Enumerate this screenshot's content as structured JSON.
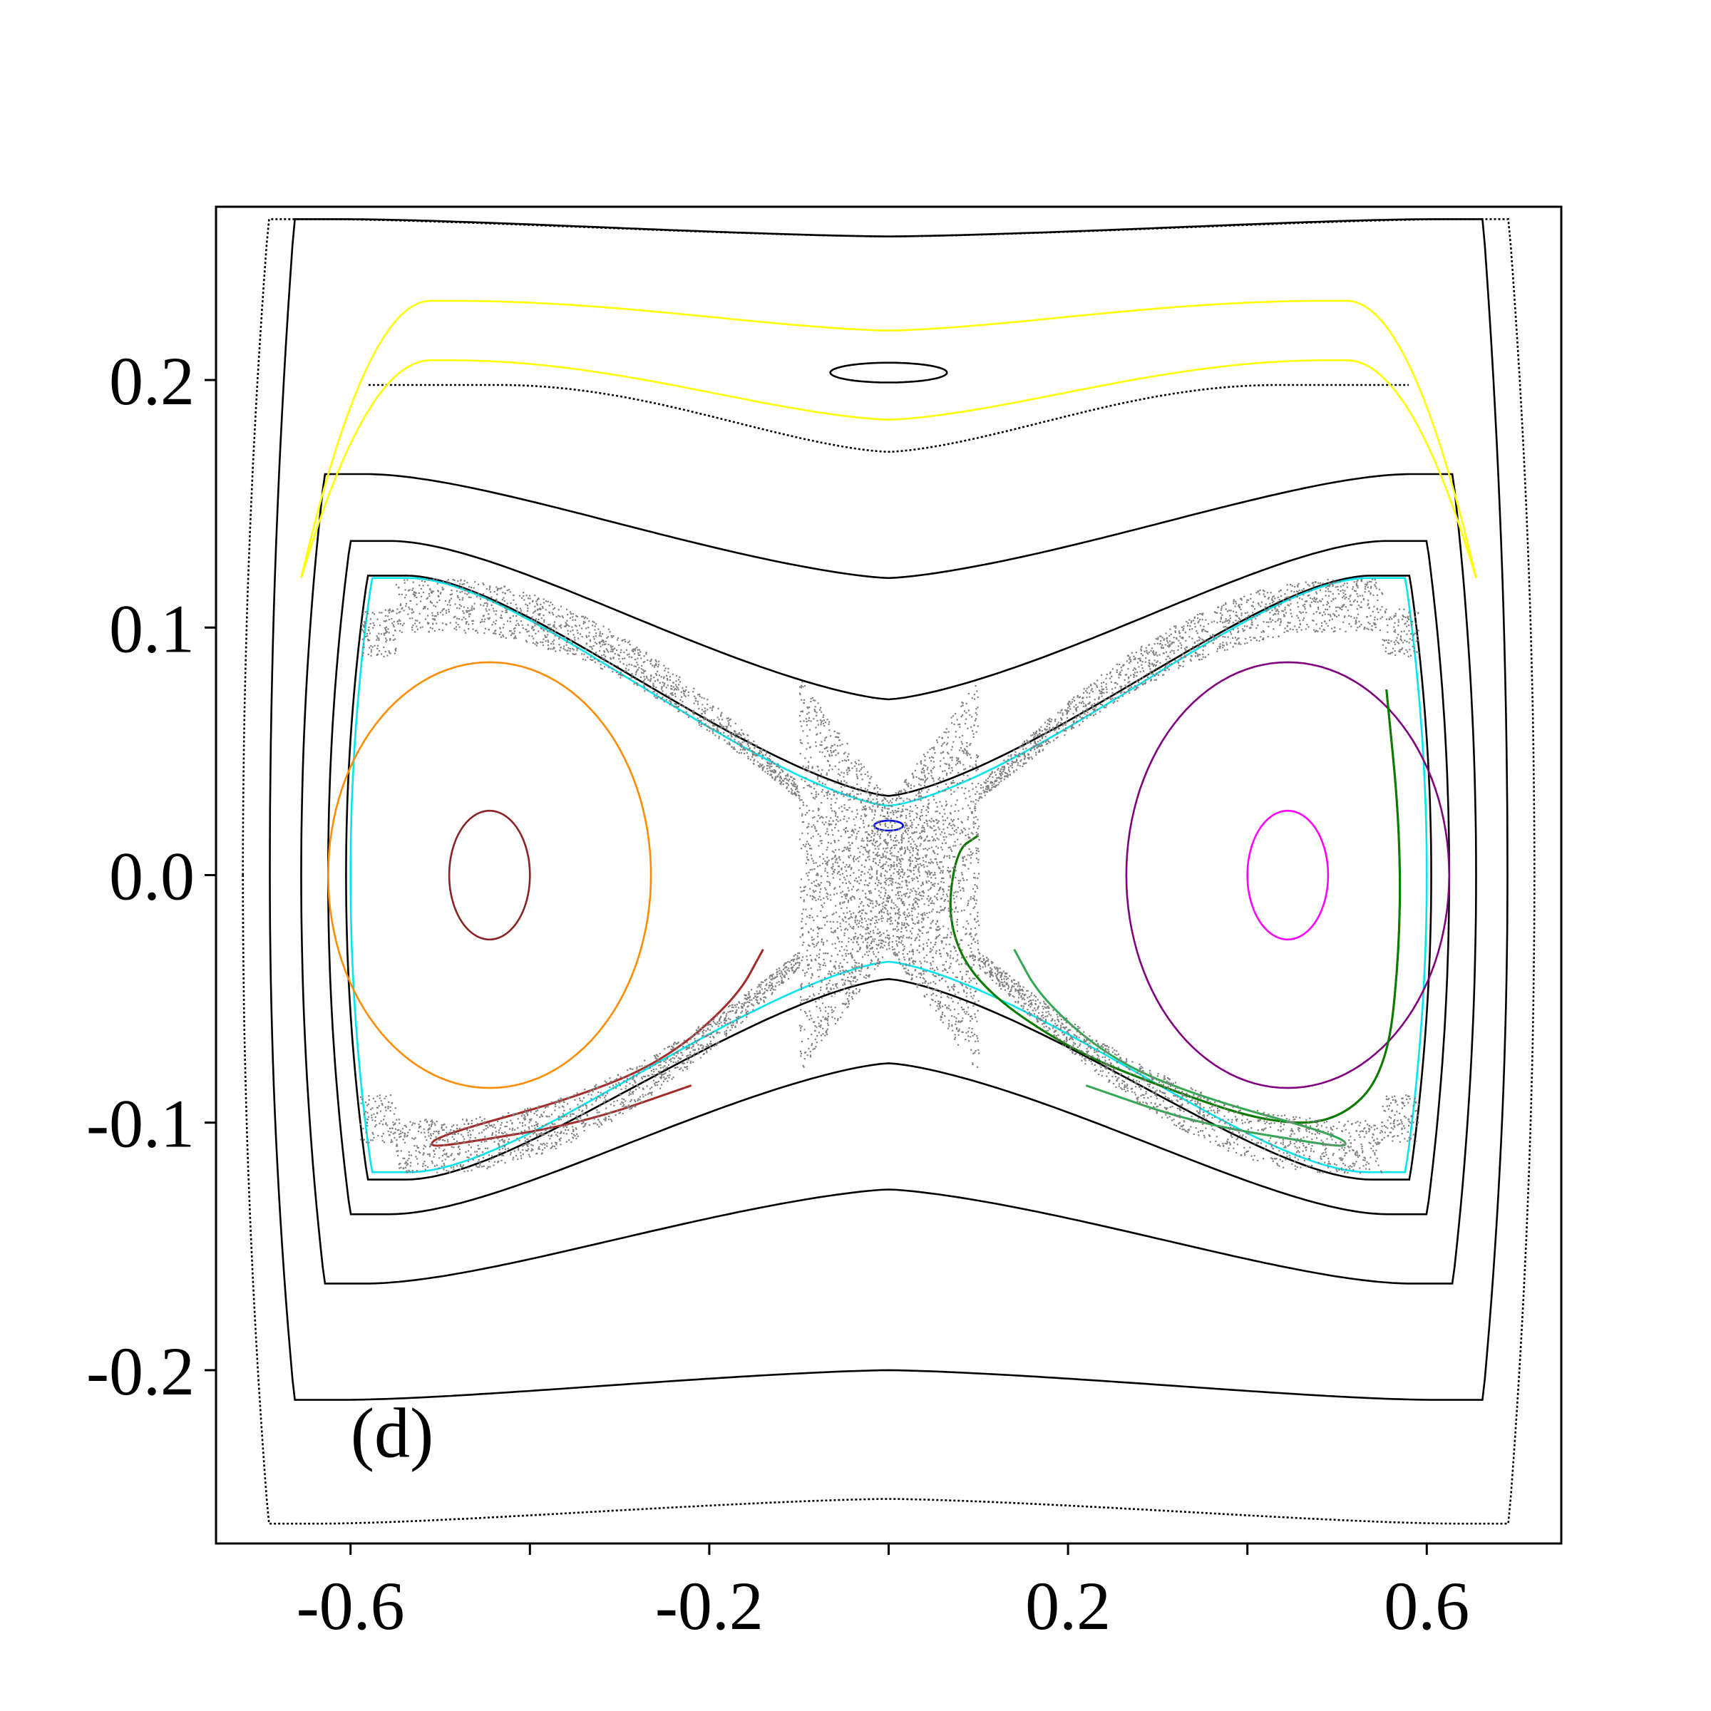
{
  "chart_data": {
    "type": "scatter",
    "title": "",
    "xlabel": "",
    "ylabel": "",
    "xlim": [
      -0.75,
      0.75
    ],
    "ylim": [
      -0.27,
      0.27
    ],
    "grid": false,
    "legend": "none",
    "panel_label": "(d)",
    "x_ticks": [
      -0.6,
      -0.4,
      -0.2,
      0.0,
      0.2,
      0.4,
      0.6
    ],
    "x_tick_labels": [
      "-0.6",
      "",
      "-0.2",
      "",
      "0.2",
      "",
      "0.6"
    ],
    "y_ticks": [
      -0.2,
      -0.1,
      0.0,
      0.1,
      0.2
    ],
    "y_tick_labels": [
      "-0.2",
      "-0.1",
      "0.0",
      "0.1",
      "0.2"
    ],
    "series": [
      {
        "color": "#000000",
        "style": "dotted",
        "kind": "band",
        "xmax": 0.72,
        "ytop": 0.265,
        "ymid_top": 0.258,
        "ybot": -0.262,
        "ymid_bot": -0.252
      },
      {
        "color": "#000000",
        "style": "solid",
        "kind": "band",
        "xmax": 0.69,
        "ytop": 0.265,
        "ymid_top": 0.258,
        "ybot": -0.212,
        "ymid_bot": -0.2,
        "cut_top": true
      },
      {
        "color": "#000000",
        "style": "solid",
        "kind": "band",
        "xmax": 0.655,
        "ytop": 0.162,
        "ymid_top": 0.12,
        "ybot": -0.165,
        "ymid_bot": -0.127
      },
      {
        "color": "#000000",
        "style": "solid",
        "kind": "band",
        "xmax": 0.625,
        "ytop": 0.135,
        "ymid_top": 0.071,
        "ybot": -0.137,
        "ymid_bot": -0.076
      },
      {
        "color": "#000000",
        "style": "solid",
        "kind": "band",
        "xmax": 0.605,
        "ytop": 0.121,
        "ymid_top": 0.032,
        "ybot": -0.123,
        "ymid_bot": -0.042
      },
      {
        "color": "#00e5ee",
        "style": "solid",
        "kind": "band",
        "xmax": 0.6,
        "ytop": 0.12,
        "ymid_top": 0.028,
        "ybot": -0.12,
        "ymid_bot": -0.035
      },
      {
        "color": "#000000",
        "style": "dotted",
        "kind": "upper",
        "xmax": 0.58,
        "ytop": 0.198,
        "ymid": 0.171
      },
      {
        "color": "#ffff00",
        "style": "solid",
        "kind": "upper",
        "xmax": 0.655,
        "ytop": 0.232,
        "ymid": 0.22,
        "yend": 0.12
      },
      {
        "color": "#ffff00",
        "style": "solid",
        "kind": "upper",
        "xmax": 0.655,
        "ytop": 0.208,
        "ymid": 0.184,
        "yend": 0.12
      },
      {
        "color": "#000000",
        "style": "solid",
        "kind": "island",
        "cx": 0.0,
        "cy": 0.203,
        "rx": 0.065,
        "ry": 0.004
      },
      {
        "color": "#ff8c00",
        "style": "solid",
        "kind": "island",
        "cx": -0.445,
        "cy": 0.0,
        "rx": 0.18,
        "ry": 0.086
      },
      {
        "color": "#8b2323",
        "style": "solid",
        "kind": "island",
        "cx": -0.445,
        "cy": 0.0,
        "rx": 0.045,
        "ry": 0.026
      },
      {
        "color": "#800080",
        "style": "solid",
        "kind": "island",
        "cx": 0.445,
        "cy": 0.0,
        "rx": 0.18,
        "ry": 0.086
      },
      {
        "color": "#ff00ff",
        "style": "solid",
        "kind": "island",
        "cx": 0.445,
        "cy": 0.0,
        "rx": 0.045,
        "ry": 0.026
      },
      {
        "color": "#0000ff",
        "style": "solid",
        "kind": "island",
        "cx": 0.0,
        "cy": 0.02,
        "rx": 0.016,
        "ry": 0.002
      },
      {
        "color": "#ff0000",
        "style": "solid",
        "kind": "lobe",
        "side": -1,
        "variant": 0
      },
      {
        "color": "#a52a2a",
        "style": "solid",
        "kind": "lobe",
        "side": -1,
        "variant": 1
      },
      {
        "color": "#008000",
        "style": "solid",
        "kind": "lobe",
        "side": 1,
        "variant": 0
      },
      {
        "color": "#32a852",
        "style": "solid",
        "kind": "lobe",
        "side": 1,
        "variant": 1
      },
      {
        "color": "#808080",
        "style": "scatter",
        "kind": "chaotic_sea"
      }
    ]
  }
}
